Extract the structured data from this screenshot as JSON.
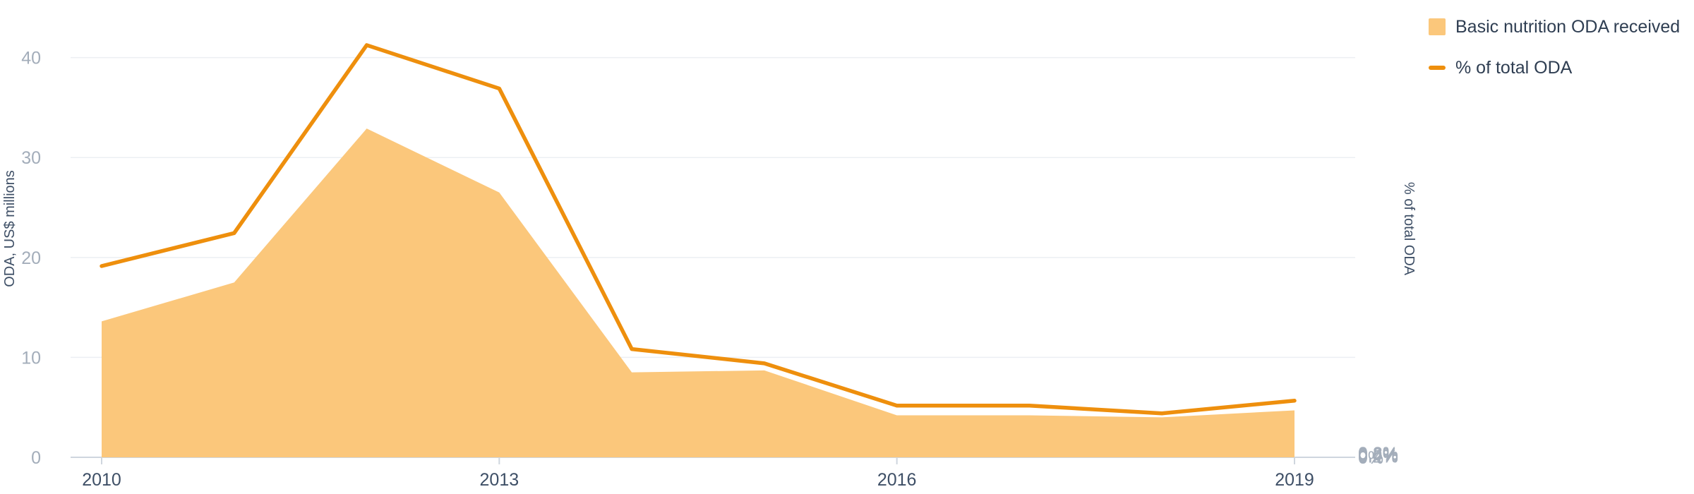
{
  "chart_data": {
    "type": "area",
    "x": [
      "2010",
      "2011",
      "2012",
      "2013",
      "2014",
      "2015",
      "2016",
      "2017",
      "2018",
      "2019"
    ],
    "series": [
      {
        "name": "Basic nutrition ODA received",
        "type": "area",
        "axis": "left",
        "color": "#fbc77b",
        "values": [
          13.6,
          17.5,
          32.9,
          26.5,
          8.5,
          8.7,
          4.2,
          4.2,
          4.0,
          4.7
        ]
      },
      {
        "name": "% of total ODA",
        "type": "line",
        "axis": "right",
        "color": "#ee8f0d",
        "values": [
          0.348,
          0.408,
          0.75,
          0.671,
          0.197,
          0.171,
          0.094,
          0.094,
          0.08,
          0.103
        ]
      }
    ],
    "ylabel": "ODA, US$ millions",
    "y2label": "% of total ODA",
    "ylim": [
      0,
      44
    ],
    "y2lim": [
      0,
      0.8
    ],
    "yticks": [
      "0",
      "10",
      "20",
      "30",
      "40"
    ],
    "y2ticks": [
      "0%",
      "0.2%",
      "0.4%",
      "0.6%",
      "0.8%"
    ],
    "xticks": [
      "2010",
      "2013",
      "2016",
      "2019"
    ],
    "grid": true,
    "legend_position": "top-right"
  },
  "legend": {
    "area_label": "Basic nutrition ODA received",
    "line_label": "% of total ODA",
    "area_color": "#fbc77b",
    "line_color": "#ee8f0d"
  }
}
